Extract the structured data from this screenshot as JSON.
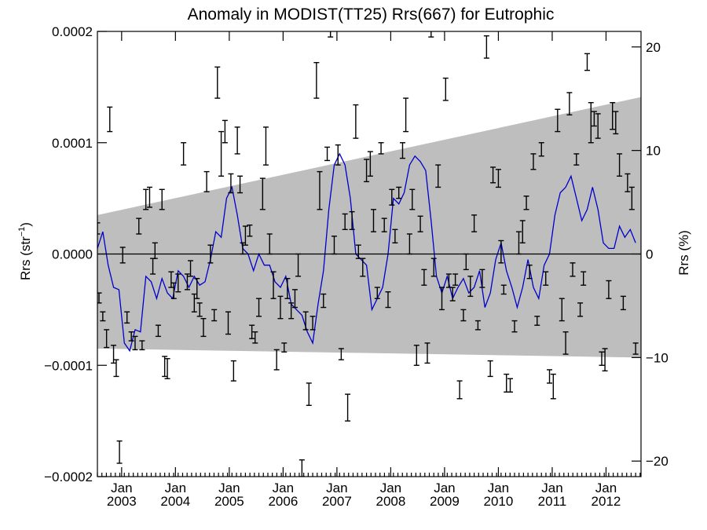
{
  "chart_data": {
    "type": "line",
    "title": "Anomaly in MODIST(TT25) Rrs(667) for Eutrophic",
    "ylabel": "Rrs (str",
    "ylabel_sup": "−1",
    "ylabel_close": ")",
    "y2label": "Rrs (%)",
    "ylim": [
      -0.0002,
      0.0002
    ],
    "y2lim": [
      -21.5,
      21.5
    ],
    "xlim": [
      2002.55,
      2012.65
    ],
    "grid": false,
    "y_ticks": [
      {
        "value": 0.0002,
        "label": "0.0002"
      },
      {
        "value": 0.0001,
        "label": "0.0001"
      },
      {
        "value": 0.0,
        "label": "0.0000"
      },
      {
        "value": -0.0001,
        "label": "−0.0001"
      },
      {
        "value": -0.0002,
        "label": "−0.0002"
      }
    ],
    "y2_ticks": [
      {
        "value": 20,
        "label": "20"
      },
      {
        "value": 10,
        "label": "10"
      },
      {
        "value": 0,
        "label": "0"
      },
      {
        "value": -10,
        "label": "−10"
      },
      {
        "value": -20,
        "label": "−20"
      }
    ],
    "x_ticks": [
      {
        "value": 2003.0,
        "month": "Jan",
        "year": "2003"
      },
      {
        "value": 2004.0,
        "month": "Jan",
        "year": "2004"
      },
      {
        "value": 2005.0,
        "month": "Jan",
        "year": "2005"
      },
      {
        "value": 2006.0,
        "month": "Jan",
        "year": "2006"
      },
      {
        "value": 2007.0,
        "month": "Jan",
        "year": "2007"
      },
      {
        "value": 2008.0,
        "month": "Jan",
        "year": "2008"
      },
      {
        "value": 2009.0,
        "month": "Jan",
        "year": "2009"
      },
      {
        "value": 2010.0,
        "month": "Jan",
        "year": "2010"
      },
      {
        "value": 2011.0,
        "month": "Jan",
        "year": "2011"
      },
      {
        "value": 2012.0,
        "month": "Jan",
        "year": "2012"
      }
    ],
    "band": {
      "upper": [
        [
          2002.55,
          3.5e-05
        ],
        [
          2012.65,
          0.000141
        ]
      ],
      "lower": [
        [
          2002.55,
          -8.5e-05
        ],
        [
          2012.65,
          -9.3e-05
        ]
      ],
      "color": "#bebebe"
    },
    "zero_line": 0,
    "series": [
      {
        "color": "#0000cc",
        "points": [
          [
            2002.55,
            5e-06
          ],
          [
            2002.65,
            2e-05
          ],
          [
            2002.75,
            -1e-05
          ],
          [
            2002.85,
            -3e-05
          ],
          [
            2002.95,
            -3.2e-05
          ],
          [
            2003.05,
            -8e-05
          ],
          [
            2003.15,
            -8.7e-05
          ],
          [
            2003.25,
            -6.8e-05
          ],
          [
            2003.35,
            -7e-05
          ],
          [
            2003.45,
            -2e-05
          ],
          [
            2003.55,
            -2.5e-05
          ],
          [
            2003.65,
            -4e-05
          ],
          [
            2003.75,
            -2.2e-05
          ],
          [
            2003.85,
            -3.5e-05
          ],
          [
            2003.95,
            -4e-05
          ],
          [
            2004.05,
            -1.5e-05
          ],
          [
            2004.15,
            -2e-05
          ],
          [
            2004.25,
            -3e-05
          ],
          [
            2004.35,
            -2e-05
          ],
          [
            2004.45,
            -2.8e-05
          ],
          [
            2004.55,
            -2.5e-05
          ],
          [
            2004.65,
            -5e-06
          ],
          [
            2004.75,
            2e-05
          ],
          [
            2004.85,
            1.5e-05
          ],
          [
            2004.95,
            5e-05
          ],
          [
            2005.05,
            6e-05
          ],
          [
            2005.15,
            3.5e-05
          ],
          [
            2005.25,
            5e-06
          ],
          [
            2005.35,
            0.0
          ],
          [
            2005.45,
            -1.5e-05
          ],
          [
            2005.55,
            0.0
          ],
          [
            2005.65,
            -1e-05
          ],
          [
            2005.75,
            -1e-05
          ],
          [
            2005.85,
            -2.5e-05
          ],
          [
            2005.95,
            -3e-05
          ],
          [
            2006.05,
            -2e-05
          ],
          [
            2006.15,
            -4.5e-05
          ],
          [
            2006.25,
            -5e-05
          ],
          [
            2006.35,
            -5.5e-05
          ],
          [
            2006.45,
            -7e-05
          ],
          [
            2006.55,
            -8e-05
          ],
          [
            2006.65,
            -4.5e-05
          ],
          [
            2006.75,
            -1.5e-05
          ],
          [
            2006.85,
            4e-05
          ],
          [
            2006.95,
            8e-05
          ],
          [
            2007.05,
            9e-05
          ],
          [
            2007.15,
            8e-05
          ],
          [
            2007.25,
            5e-05
          ],
          [
            2007.35,
            0.0
          ],
          [
            2007.45,
            -5e-06
          ],
          [
            2007.55,
            -1e-05
          ],
          [
            2007.65,
            -5e-05
          ],
          [
            2007.75,
            -4e-05
          ],
          [
            2007.85,
            -3e-05
          ],
          [
            2007.95,
            0.0
          ],
          [
            2008.05,
            5e-05
          ],
          [
            2008.15,
            4.5e-05
          ],
          [
            2008.25,
            5.5e-05
          ],
          [
            2008.35,
            8e-05
          ],
          [
            2008.45,
            8.8e-05
          ],
          [
            2008.55,
            8.3e-05
          ],
          [
            2008.65,
            7.5e-05
          ],
          [
            2008.75,
            3e-05
          ],
          [
            2008.85,
            -2e-05
          ],
          [
            2008.95,
            -3.5e-05
          ],
          [
            2009.05,
            -2e-05
          ],
          [
            2009.15,
            -4e-05
          ],
          [
            2009.25,
            -3e-05
          ],
          [
            2009.35,
            -2.2e-05
          ],
          [
            2009.45,
            -3.5e-05
          ],
          [
            2009.55,
            -3e-05
          ],
          [
            2009.65,
            -1.5e-05
          ],
          [
            2009.75,
            -4.8e-05
          ],
          [
            2009.85,
            -3.5e-05
          ],
          [
            2009.95,
            -5e-06
          ],
          [
            2010.05,
            1e-05
          ],
          [
            2010.15,
            -1.5e-05
          ],
          [
            2010.25,
            -3e-05
          ],
          [
            2010.35,
            -4.8e-05
          ],
          [
            2010.45,
            -3e-05
          ],
          [
            2010.55,
            -5e-06
          ],
          [
            2010.65,
            -3e-05
          ],
          [
            2010.75,
            -4e-05
          ],
          [
            2010.85,
            -1e-05
          ],
          [
            2010.95,
            0.0
          ],
          [
            2011.05,
            3.5e-05
          ],
          [
            2011.15,
            5.5e-05
          ],
          [
            2011.25,
            6e-05
          ],
          [
            2011.35,
            7e-05
          ],
          [
            2011.45,
            5e-05
          ],
          [
            2011.55,
            3e-05
          ],
          [
            2011.65,
            4e-05
          ],
          [
            2011.75,
            6e-05
          ],
          [
            2011.85,
            4e-05
          ],
          [
            2011.95,
            1e-05
          ],
          [
            2012.05,
            5e-06
          ],
          [
            2012.15,
            5e-06
          ],
          [
            2012.25,
            2.5e-05
          ],
          [
            2012.35,
            1.5e-05
          ],
          [
            2012.45,
            2.2e-05
          ],
          [
            2012.55,
            1e-05
          ]
        ]
      }
    ],
    "error_bars": [
      [
        2002.55,
        1.8e-05,
        2.8e-05
      ],
      [
        2002.58,
        -4.4e-05,
        -3.5e-05
      ],
      [
        2002.65,
        -6e-05,
        -5.2e-05
      ],
      [
        2002.72,
        -8.4e-05,
        -6.8e-05
      ],
      [
        2002.78,
        0.00011,
        0.000132
      ],
      [
        2002.85,
        -9.8e-05,
        -8.2e-05
      ],
      [
        2002.9,
        -0.00011,
        -9.5e-05
      ],
      [
        2002.96,
        -0.000188,
        -0.000168
      ],
      [
        2003.02,
        -8e-06,
        6e-06
      ],
      [
        2003.1,
        -6.2e-05,
        -5.2e-05
      ],
      [
        2003.18,
        -7.8e-05,
        -7e-05
      ],
      [
        2003.25,
        -8.6e-05,
        -7.4e-05
      ],
      [
        2003.32,
        1.8e-05,
        3.2e-05
      ],
      [
        2003.38,
        -8.6e-05,
        -7.8e-05
      ],
      [
        2003.45,
        4e-05,
        5.8e-05
      ],
      [
        2003.52,
        4.2e-05,
        6e-05
      ],
      [
        2003.58,
        -1.8e-05,
        -4e-06
      ],
      [
        2003.62,
        -4e-06,
        1e-05
      ],
      [
        2003.68,
        -7.4e-05,
        -6.4e-05
      ],
      [
        2003.75,
        4e-05,
        5.8e-05
      ],
      [
        2003.8,
        -0.00011,
        -9.2e-05
      ],
      [
        2003.85,
        -0.000112,
        -9.4e-05
      ],
      [
        2003.92,
        -3e-05,
        -1.6e-05
      ],
      [
        2003.97,
        -4e-05,
        -2.6e-05
      ],
      [
        2004.05,
        -3.4e-05,
        -1.8e-05
      ],
      [
        2004.15,
        8e-05,
        0.0001
      ],
      [
        2004.22,
        -3.2e-05,
        -1.8e-05
      ],
      [
        2004.28,
        -2e-05,
        -6e-06
      ],
      [
        2004.35,
        -5.2e-05,
        -3.6e-05
      ],
      [
        2004.4,
        -4e-05,
        -2.2e-05
      ],
      [
        2004.45,
        -5.6e-05,
        -4.4e-05
      ],
      [
        2004.52,
        -7.4e-05,
        -5.8e-05
      ],
      [
        2004.58,
        5.6e-05,
        7.4e-05
      ],
      [
        2004.65,
        -8e-06,
        8e-06
      ],
      [
        2004.72,
        -6e-05,
        -5e-05
      ],
      [
        2004.78,
        0.00014,
        0.000168
      ],
      [
        2004.85,
        7e-05,
        0.00011
      ],
      [
        2004.92,
        0.0001,
        0.00012
      ],
      [
        2004.98,
        -7.2e-05,
        -5.2e-05
      ],
      [
        2005.03,
        5.5e-05,
        7.2e-05
      ],
      [
        2005.08,
        -0.000114,
        -9.6e-05
      ],
      [
        2005.15,
        9e-05,
        0.000114
      ],
      [
        2005.2,
        5.5e-05,
        7e-05
      ],
      [
        2005.25,
        0.0,
        1e-05
      ],
      [
        2005.3,
        8e-06,
        2.5e-05
      ],
      [
        2005.38,
        1.6e-05,
        2.6e-05
      ],
      [
        2005.42,
        -7.6e-05,
        -6.4e-05
      ],
      [
        2005.48,
        -8e-05,
        -7e-05
      ],
      [
        2005.55,
        -5.6e-05,
        -4e-05
      ],
      [
        2005.62,
        4e-05,
        6.8e-05
      ],
      [
        2005.68,
        8e-05,
        0.000114
      ],
      [
        2005.75,
        0.0,
        1.8e-05
      ],
      [
        2005.82,
        -4e-05,
        -1.6e-05
      ],
      [
        2005.88,
        -0.000104,
        -8.6e-05
      ],
      [
        2005.95,
        -5.8e-05,
        -3.8e-05
      ],
      [
        2006.02,
        -8.8e-05,
        -8e-05
      ],
      [
        2006.08,
        -4e-05,
        -2.2e-05
      ],
      [
        2006.15,
        -5.8e-05,
        -4.4e-05
      ],
      [
        2006.22,
        -4.8e-05,
        -3.2e-05
      ],
      [
        2006.28,
        -2e-05,
        0.0
      ],
      [
        2006.35,
        -0.0002,
        -0.000185
      ],
      [
        2006.42,
        -6.8e-05,
        -5.2e-05
      ],
      [
        2006.48,
        -0.000136,
        -0.000116
      ],
      [
        2006.55,
        -6.8e-05,
        -5.6e-05
      ],
      [
        2006.62,
        0.00014,
        0.000172
      ],
      [
        2006.68,
        4e-05,
        7.4e-05
      ],
      [
        2006.75,
        -4.8e-05,
        -3.6e-05
      ],
      [
        2006.82,
        8.4e-05,
        9.6e-05
      ],
      [
        2006.88,
        0.000195,
        0.00021
      ],
      [
        2006.95,
        0.0,
        1.6e-05
      ],
      [
        2007.02,
        8e-05,
        9.8e-05
      ],
      [
        2007.08,
        -9.5e-05,
        -8.5e-05
      ],
      [
        2007.15,
        2.2e-05,
        3.6e-05
      ],
      [
        2007.2,
        -0.00015,
        -0.000126
      ],
      [
        2007.28,
        2.2e-05,
        3.8e-05
      ],
      [
        2007.35,
        0.000104,
        0.000134
      ],
      [
        2007.4,
        -4e-06,
        8e-06
      ],
      [
        2007.48,
        -2e-05,
        -4e-06
      ],
      [
        2007.55,
        6.5e-05,
        8.5e-05
      ],
      [
        2007.62,
        7e-05,
        9.2e-05
      ],
      [
        2007.68,
        2e-05,
        4e-05
      ],
      [
        2007.75,
        -4e-05,
        -3e-05
      ],
      [
        2007.82,
        9e-05,
        0.0001
      ],
      [
        2007.88,
        2e-05,
        3.2e-05
      ],
      [
        2007.95,
        -4.8e-05,
        -3.4e-05
      ],
      [
        2008.02,
        4.4e-05,
        5.8e-05
      ],
      [
        2008.08,
        1e-05,
        2.2e-05
      ],
      [
        2008.15,
        5e-05,
        6e-05
      ],
      [
        2008.22,
        8.6e-05,
        0.0001
      ],
      [
        2008.28,
        0.00011,
        0.00014
      ],
      [
        2008.35,
        0.0,
        1.8e-05
      ],
      [
        2008.4,
        4e-05,
        5.8e-05
      ],
      [
        2008.48,
        -0.0001,
        -8.2e-05
      ],
      [
        2008.55,
        2e-05,
        3.4e-05
      ],
      [
        2008.62,
        -2.8e-05,
        -1.4e-05
      ],
      [
        2008.68,
        -9.8e-05,
        -8e-05
      ],
      [
        2008.75,
        0.000195,
        0.00021
      ],
      [
        2008.8,
        -2e-05,
        -4e-06
      ],
      [
        2008.88,
        6e-05,
        8e-05
      ],
      [
        2008.95,
        -5e-05,
        -3e-05
      ],
      [
        2009.02,
        0.000138,
        0.000158
      ],
      [
        2009.08,
        -3e-05,
        -1.8e-05
      ],
      [
        2009.15,
        -4.2e-05,
        -3e-05
      ],
      [
        2009.2,
        -2.8e-05,
        -1.8e-05
      ],
      [
        2009.28,
        -0.00013,
        -0.000114
      ],
      [
        2009.35,
        -6e-05,
        -5e-05
      ],
      [
        2009.4,
        -1.4e-05,
        0.0
      ],
      [
        2009.48,
        -3.8e-05,
        -2e-05
      ],
      [
        2009.55,
        2e-05,
        3.5e-05
      ],
      [
        2009.62,
        -6.8e-05,
        -6e-05
      ],
      [
        2009.7,
        -3e-05,
        -1.4e-05
      ],
      [
        2009.78,
        0.000176,
        0.000196
      ],
      [
        2009.85,
        -0.00011,
        -9.6e-05
      ],
      [
        2009.9,
        6.4e-05,
        7.8e-05
      ],
      [
        2010.0,
        6e-05,
        7.6e-05
      ],
      [
        2010.05,
        -8e-06,
        1.2e-05
      ],
      [
        2010.1,
        -3.6e-05,
        -2.8e-05
      ],
      [
        2010.15,
        -0.000124,
        -0.000108
      ],
      [
        2010.22,
        -0.000124,
        -0.000112
      ],
      [
        2010.3,
        -7e-05,
        -6e-05
      ],
      [
        2010.38,
        0.0,
        2e-05
      ],
      [
        2010.45,
        1e-05,
        3e-05
      ],
      [
        2010.52,
        4e-05,
        5.2e-05
      ],
      [
        2010.58,
        -2.2e-05,
        -1e-05
      ],
      [
        2010.65,
        7.6e-05,
        9e-05
      ],
      [
        2010.72,
        -6.4e-05,
        -5.6e-05
      ],
      [
        2010.8,
        8.8e-05,
        0.0001
      ],
      [
        2010.88,
        -2.8e-05,
        -1.6e-05
      ],
      [
        2010.95,
        -0.000116,
        -0.000104
      ],
      [
        2011.02,
        -0.00013,
        -0.000108
      ],
      [
        2011.1,
        0.00011,
        0.00013
      ],
      [
        2011.18,
        -6e-05,
        -4e-05
      ],
      [
        2011.25,
        -9e-05,
        -7e-05
      ],
      [
        2011.32,
        0.000125,
        0.000145
      ],
      [
        2011.38,
        -2e-05,
        -8e-06
      ],
      [
        2011.45,
        8e-05,
        9e-05
      ],
      [
        2011.52,
        -5.6e-05,
        -4.4e-05
      ],
      [
        2011.58,
        -2.8e-05,
        -1.6e-05
      ],
      [
        2011.65,
        0.000165,
        0.00018
      ],
      [
        2011.72,
        0.0001,
        0.000136
      ],
      [
        2011.78,
        0.000115,
        0.000128
      ],
      [
        2011.85,
        0.000104,
        0.000126
      ],
      [
        2011.92,
        -0.0001,
        -8.8e-05
      ],
      [
        2011.98,
        -0.000105,
        -8.5e-05
      ],
      [
        2012.05,
        -4e-05,
        -2.4e-05
      ],
      [
        2012.12,
        0.000112,
        0.000136
      ],
      [
        2012.18,
        0.000108,
        0.000128
      ],
      [
        2012.25,
        7e-05,
        9e-05
      ],
      [
        2012.32,
        -5e-05,
        -3.8e-05
      ],
      [
        2012.4,
        5.6e-05,
        7.2e-05
      ],
      [
        2012.48,
        4e-05,
        6e-05
      ],
      [
        2012.55,
        -9e-05,
        -8e-05
      ]
    ]
  }
}
